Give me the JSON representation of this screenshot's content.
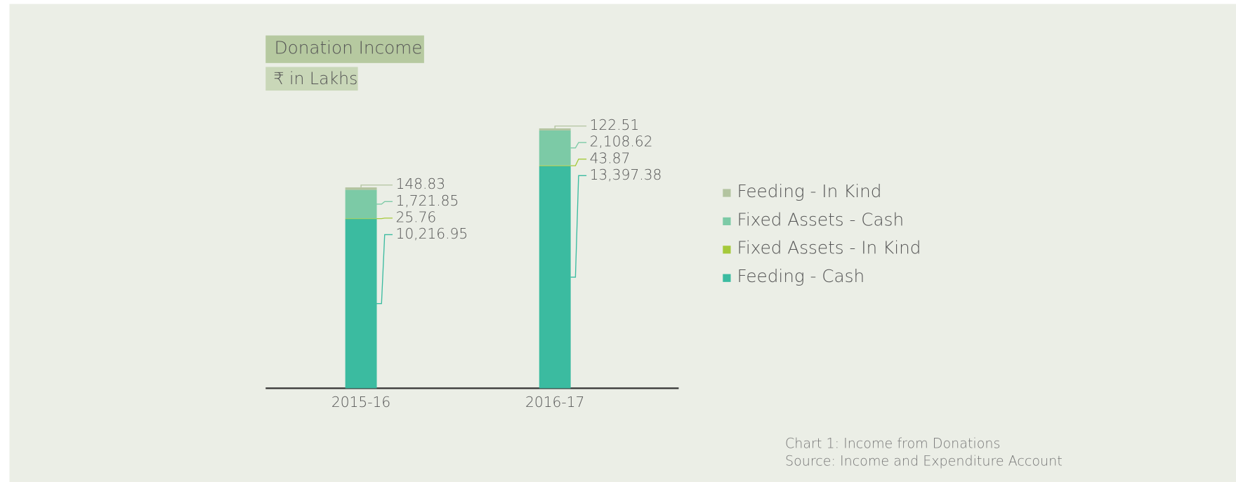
{
  "chart_data": {
    "type": "stacked_bar",
    "title": "Donation Income",
    "subtitle": "₹ in Lakhs",
    "categories": [
      "2015-16",
      "2016-17"
    ],
    "series": [
      {
        "name": "Feeding - Cash",
        "color": "#3bbba0",
        "values": [
          10216.95,
          13397.38
        ],
        "value_labels": [
          "10,216.95",
          "13,397.38"
        ]
      },
      {
        "name": "Fixed Assets - In Kind",
        "color": "#a5c93a",
        "values": [
          25.76,
          43.87
        ]
      },
      {
        "name": "Fixed Assets - Cash",
        "color": "#7ccaa6",
        "values": [
          1721.85,
          2108.62
        ],
        "value_labels": [
          "1,721.85",
          "2,108.62"
        ]
      },
      {
        "name": "Feeding - In Kind",
        "color": "#b3c4a0",
        "values": [
          148.83,
          122.51
        ]
      }
    ],
    "caption": "Chart 1: Income from Donations",
    "source": "Source: Income and Expenditure Account"
  }
}
